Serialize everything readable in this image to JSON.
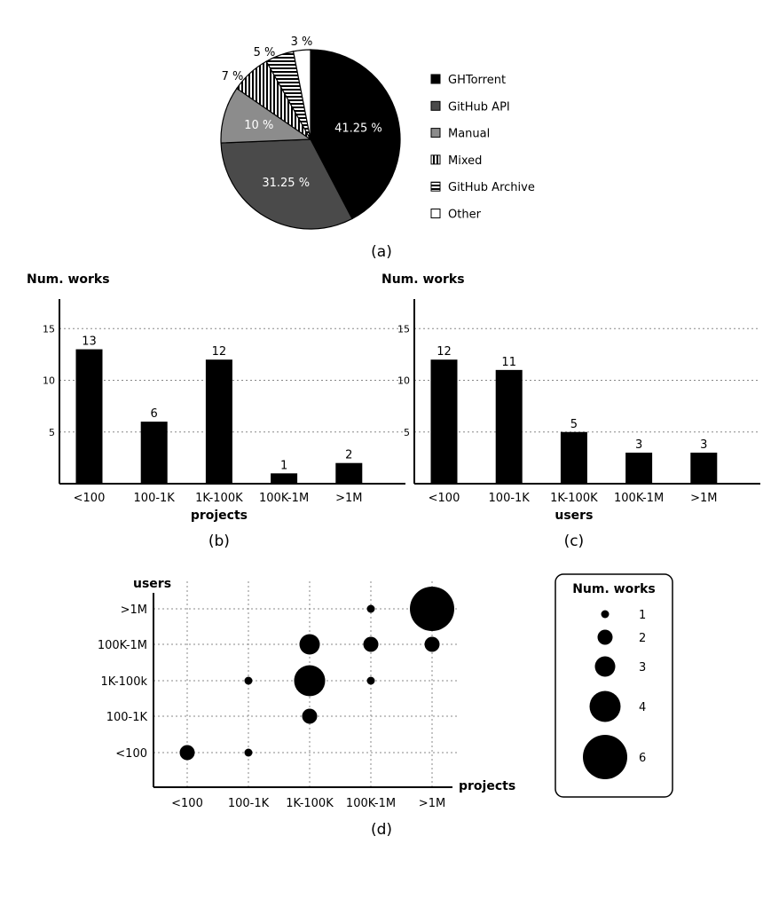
{
  "chart_data": [
    {
      "id": "a",
      "type": "pie",
      "caption": "(a)",
      "slices": [
        {
          "name": "GHTorrent",
          "value": 41.25,
          "label": "41.25 %",
          "fill": "#000000"
        },
        {
          "name": "GitHub API",
          "value": 31.25,
          "label": "31.25 %",
          "fill": "#4a4a4a"
        },
        {
          "name": "Manual",
          "value": 10,
          "label": "10 %",
          "fill": "#8c8c8c"
        },
        {
          "name": "Mixed",
          "value": 7,
          "label": "7 %",
          "fill": "vertical-stripes"
        },
        {
          "name": "GitHub Archive",
          "value": 5,
          "label": "5 %",
          "fill": "horizontal-stripes"
        },
        {
          "name": "Other",
          "value": 3,
          "label": "3 %",
          "fill": "#ffffff"
        }
      ],
      "legend_position": "right"
    },
    {
      "id": "b",
      "type": "bar",
      "caption": "(b)",
      "ylabel": "Num. works",
      "xlabel": "projects",
      "categories": [
        "<100",
        "100-1K",
        "1K-100K",
        "100K-1M",
        ">1M"
      ],
      "values": [
        13,
        6,
        12,
        1,
        2
      ],
      "yticks": [
        5,
        10,
        15
      ],
      "ylim": [
        0,
        18
      ],
      "grid": "horizontal-dotted"
    },
    {
      "id": "c",
      "type": "bar",
      "caption": "(c)",
      "ylabel": "Num. works",
      "xlabel": "users",
      "categories": [
        "<100",
        "100-1K",
        "1K-100K",
        "100K-1M",
        ">1M"
      ],
      "values": [
        12,
        11,
        5,
        3,
        3
      ],
      "yticks": [
        5,
        10,
        15
      ],
      "ylim": [
        0,
        18
      ],
      "grid": "horizontal-dotted"
    },
    {
      "id": "d",
      "type": "scatter",
      "caption": "(d)",
      "xlabel": "projects",
      "ylabel": "users",
      "x_categories": [
        "<100",
        "100-1K",
        "1K-100K",
        "100K-1M",
        ">1M"
      ],
      "y_categories": [
        "<100",
        "100-1K",
        "1K-100k",
        "100K-1M",
        ">1M"
      ],
      "points": [
        {
          "x": "<100",
          "y": "<100",
          "size": 2
        },
        {
          "x": "100-1K",
          "y": "<100",
          "size": 1
        },
        {
          "x": "100-1K",
          "y": "1K-100k",
          "size": 1
        },
        {
          "x": "1K-100K",
          "y": "100-1K",
          "size": 2
        },
        {
          "x": "1K-100K",
          "y": "1K-100k",
          "size": 4
        },
        {
          "x": "1K-100K",
          "y": "100K-1M",
          "size": 3
        },
        {
          "x": "100K-1M",
          "y": "1K-100k",
          "size": 1
        },
        {
          "x": "100K-1M",
          "y": "100K-1M",
          "size": 2
        },
        {
          "x": "100K-1M",
          "y": ">1M",
          "size": 1
        },
        {
          "x": ">1M",
          "y": "100K-1M",
          "size": 2
        },
        {
          "x": ">1M",
          "y": ">1M",
          "size": 6
        }
      ],
      "size_legend": {
        "title": "Num. works",
        "values": [
          1,
          2,
          3,
          4,
          6
        ]
      },
      "grid": "dotted"
    }
  ]
}
